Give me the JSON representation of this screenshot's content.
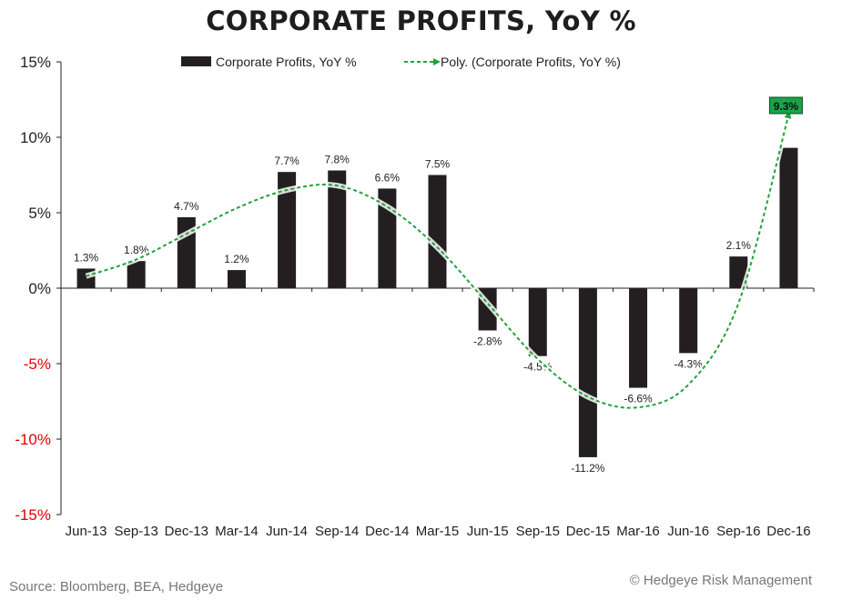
{
  "page": {
    "title": "CORPORATE PROFITS, YoY %",
    "source": "Source: Bloomberg, BEA, Hedgeye",
    "copyright": "© Hedgeye Risk Management"
  },
  "chart_data": {
    "type": "bar",
    "title": "CORPORATE PROFITS, YoY %",
    "xlabel": "",
    "ylabel": "",
    "categories": [
      "Jun-13",
      "Sep-13",
      "Dec-13",
      "Mar-14",
      "Jun-14",
      "Sep-14",
      "Dec-14",
      "Mar-15",
      "Jun-15",
      "Sep-15",
      "Dec-15",
      "Mar-16",
      "Jun-16",
      "Sep-16",
      "Dec-16"
    ],
    "series": [
      {
        "name": "Corporate Profits, YoY %",
        "type": "bar",
        "values": [
          1.3,
          1.8,
          4.7,
          1.2,
          7.7,
          7.8,
          6.6,
          7.5,
          -2.8,
          -4.5,
          -11.2,
          -6.6,
          -4.3,
          2.1,
          9.3
        ],
        "labels": [
          "1.3%",
          "1.8%",
          "4.7%",
          "1.2%",
          "7.7%",
          "7.8%",
          "6.6%",
          "7.5%",
          "-2.8%",
          "-4.5%",
          "-11.2%",
          "-6.6%",
          "-4.3%",
          "2.1%",
          ""
        ],
        "color": "#231f20"
      },
      {
        "name": "Poly. (Corporate Profits, YoY %)",
        "type": "line",
        "style": "dashed",
        "values": [
          0.8,
          1.9,
          3.6,
          5.3,
          6.5,
          6.8,
          5.4,
          2.7,
          -1.0,
          -4.7,
          -7.2,
          -7.9,
          -6.4,
          -1.0,
          11.5
        ],
        "color": "#1fa33a"
      }
    ],
    "callout": {
      "text": "9.3%",
      "category": "Dec-16",
      "color": "#1aa34a"
    },
    "yticks": [
      "15%",
      "10%",
      "5%",
      "0%",
      "-5%",
      "-10%",
      "-15%"
    ],
    "ytick_values": [
      15,
      10,
      5,
      0,
      -5,
      -10,
      -15
    ],
    "negative_tick_color": "#e00000",
    "ylim": [
      -15,
      15
    ],
    "grid": false,
    "legend_position": "top"
  }
}
